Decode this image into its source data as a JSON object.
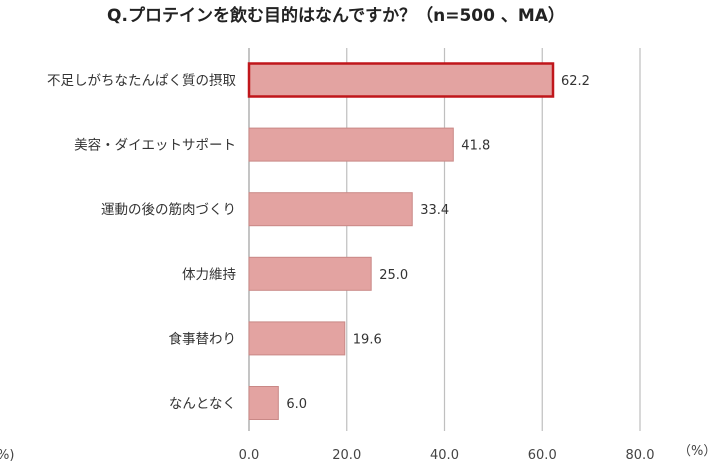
{
  "chart_data": {
    "type": "bar",
    "orientation": "horizontal",
    "title": "Q.プロテインを飲む目的はなんですか？（n=500 、MA）",
    "categories": [
      "不足しがちなたんぱく質の摂取",
      "美容・ダイエットサポート",
      "運動の後の筋肉づくり",
      "体力維持",
      "食事替わり",
      "なんとなく"
    ],
    "values": [
      62.2,
      41.8,
      33.4,
      25.0,
      19.6,
      6.0
    ],
    "value_labels": [
      "62.2",
      "41.8",
      "33.4",
      "25.0",
      "19.6",
      "6.0"
    ],
    "xlim": [
      0,
      80
    ],
    "ticks": [
      "0.0",
      "20.0",
      "40.0",
      "60.0",
      "80.0"
    ],
    "unit_label": "（%）",
    "left_edge_label": "%)",
    "grid": "vertical",
    "highlighted_category": "不足しがちなたんぱく質の摂取",
    "colors": {
      "bar_fill": "#e3a3a1",
      "bar_stroke": "#c98886",
      "highlight_stroke": "#c0161b",
      "grid": "#bfbfbf",
      "axis": "#9e9e9e"
    }
  }
}
